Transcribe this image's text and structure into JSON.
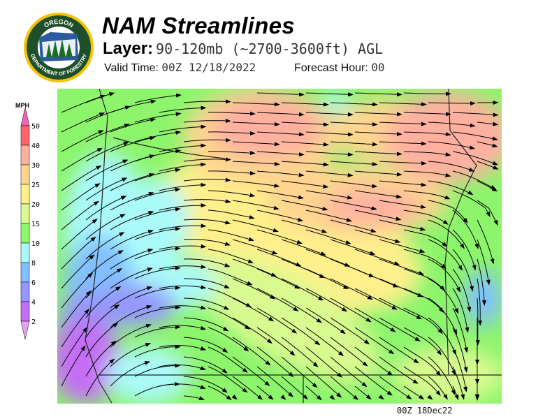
{
  "header": {
    "title": "NAM Streamlines",
    "layer_label": "Layer:",
    "layer_value": "90-120mb (~2700-3600ft) AGL",
    "valid_label": "Valid Time:",
    "valid_value": "00Z 12/18/2022",
    "forecast_label": "Forecast Hour:",
    "forecast_value": "00"
  },
  "logo": {
    "top_text": "OREGON",
    "bottom_text": "DEPARTMENT OF FORESTRY"
  },
  "legend": {
    "units": "MPH",
    "ticks": [
      "50",
      "40",
      "30",
      "25",
      "20",
      "15",
      "10",
      "8",
      "6",
      "4",
      "2"
    ],
    "colors": [
      "#f062b8",
      "#ff6464",
      "#ffb0a0",
      "#ffd490",
      "#fff08c",
      "#d8fa90",
      "#8cfa6a",
      "#aafafa",
      "#82c0ff",
      "#9696ff",
      "#c46ef5",
      "#e6a0f5"
    ]
  },
  "map": {
    "footer": "00Z 18Dec22"
  }
}
